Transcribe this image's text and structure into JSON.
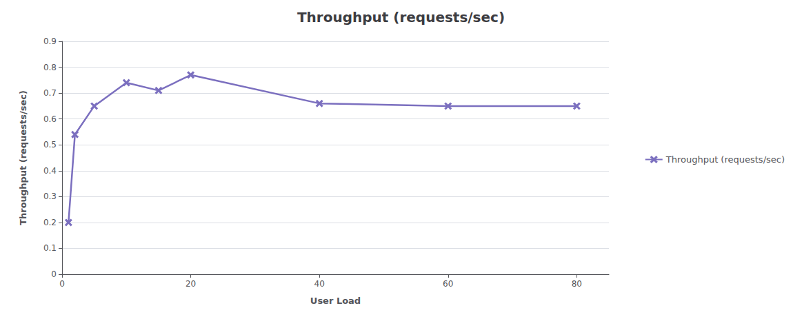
{
  "chart_data": {
    "type": "line",
    "title": "Throughput (requests/sec)",
    "xlabel": "User Load",
    "ylabel": "Throughput (requests/sec)",
    "x": [
      1,
      2,
      5,
      10,
      15,
      20,
      40,
      60,
      80
    ],
    "series": [
      {
        "name": "Throughput (requests/sec)",
        "color": "#7b6fbf",
        "marker": "x",
        "values": [
          0.2,
          0.54,
          0.65,
          0.74,
          0.71,
          0.77,
          0.66,
          0.65,
          0.65
        ]
      }
    ],
    "xlim": [
      0,
      85
    ],
    "xticks": [
      0,
      20,
      40,
      60,
      80
    ],
    "ylim": [
      0,
      0.9
    ],
    "yticks": [
      0,
      0.1,
      0.2,
      0.3,
      0.4,
      0.5,
      0.6,
      0.7,
      0.8,
      0.9
    ],
    "grid": "y",
    "legend": "right"
  }
}
